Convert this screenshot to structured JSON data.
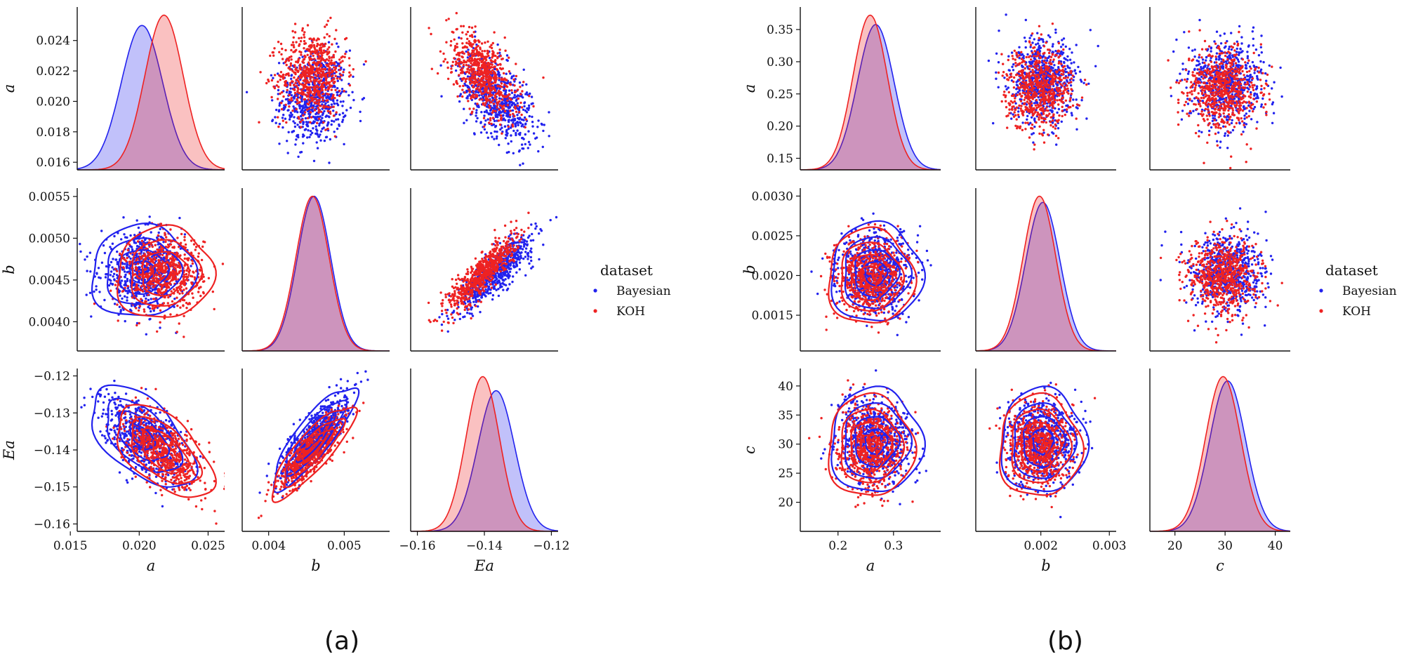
{
  "chart_data": [
    {
      "type": "scatter",
      "title": "",
      "panel_caption": "(a)",
      "variables": [
        "a",
        "b",
        "Ea"
      ],
      "xlabels": [
        "a",
        "b",
        "Ea"
      ],
      "ylabels": [
        "a",
        "b",
        "Ea"
      ],
      "ranges": {
        "a": [
          0.0155,
          0.0262
        ],
        "b": [
          0.00365,
          0.0056
        ],
        "Ea": [
          -0.162,
          -0.118
        ]
      },
      "ticks": {
        "a": [
          0.016,
          0.018,
          0.02,
          0.022,
          0.024
        ],
        "b": [
          0.004,
          0.0045,
          0.005,
          0.0055
        ],
        "Ea": [
          -0.16,
          -0.15,
          -0.14,
          -0.13,
          -0.12
        ]
      },
      "tick_labels": {
        "a": [
          "0.016",
          "0.018",
          "0.020",
          "0.022",
          "0.024"
        ],
        "b": [
          "0.0040",
          "0.0045",
          "0.0050",
          "0.0055"
        ],
        "Ea": [
          "−0.16",
          "−0.15",
          "−0.14",
          "−0.13",
          "−0.12"
        ]
      },
      "x_ticks": {
        "a": [
          0.015,
          0.02,
          0.025
        ],
        "b": [
          0.004,
          0.005
        ],
        "Ea": [
          -0.16,
          -0.14,
          -0.12
        ]
      },
      "x_tick_labels": {
        "a": [
          "0.015",
          "0.020",
          "0.025"
        ],
        "b": [
          "0.004",
          "0.005"
        ],
        "Ea": [
          "−0.16",
          "−0.14",
          "−0.12"
        ]
      },
      "series": [
        {
          "name": "Bayesian",
          "color": "#2222ee",
          "mean": {
            "a": 0.0202,
            "b": 0.0046,
            "Ea": -0.1365
          },
          "sd": {
            "a": 0.0015,
            "b": 0.00022,
            "Ea": 0.0055
          },
          "corr": {
            "a_b": 0.05,
            "a_Ea": -0.55,
            "b_Ea": 0.85
          }
        },
        {
          "name": "KOH",
          "color": "#ee2222",
          "mean": {
            "a": 0.0218,
            "b": 0.00458,
            "Ea": -0.1405
          },
          "sd": {
            "a": 0.0014,
            "b": 0.00022,
            "Ea": 0.005
          },
          "corr": {
            "a_b": 0.05,
            "a_Ea": -0.55,
            "b_Ea": 0.85
          }
        }
      ],
      "legend": {
        "title": "dataset",
        "entries": [
          "Bayesian",
          "KOH"
        ],
        "location": "right"
      }
    },
    {
      "type": "scatter",
      "title": "",
      "panel_caption": "(b)",
      "variables": [
        "a",
        "b",
        "c"
      ],
      "xlabels": [
        "a",
        "b",
        "c"
      ],
      "ylabels": [
        "a",
        "b",
        "c"
      ],
      "ranges": {
        "a": [
          0.132,
          0.385
        ],
        "b": [
          0.00105,
          0.0031
        ],
        "c": [
          15,
          43
        ]
      },
      "ticks": {
        "a": [
          0.15,
          0.2,
          0.25,
          0.3,
          0.35
        ],
        "b": [
          0.0015,
          0.002,
          0.0025,
          0.003
        ],
        "c": [
          20,
          25,
          30,
          35,
          40
        ]
      },
      "tick_labels": {
        "a": [
          "0.15",
          "0.20",
          "0.25",
          "0.30",
          "0.35"
        ],
        "b": [
          "0.0015",
          "0.0020",
          "0.0025",
          "0.0030"
        ],
        "c": [
          "20",
          "25",
          "30",
          "35",
          "40"
        ]
      },
      "x_ticks": {
        "a": [
          0.2,
          0.3
        ],
        "b": [
          0.002,
          0.003
        ],
        "c": [
          20,
          30,
          40
        ]
      },
      "x_tick_labels": {
        "a": [
          "0.2",
          "0.3"
        ],
        "b": [
          "0.002",
          "0.003"
        ],
        "c": [
          "20",
          "30",
          "40"
        ]
      },
      "series": [
        {
          "name": "Bayesian",
          "color": "#2222ee",
          "mean": {
            "a": 0.268,
            "b": 0.00203,
            "c": 30.5
          },
          "sd": {
            "a": 0.033,
            "b": 0.00025,
            "c": 3.6
          },
          "corr": {
            "a_b": 0.0,
            "a_c": 0.0,
            "b_c": 0.0
          }
        },
        {
          "name": "KOH",
          "color": "#ee2222",
          "mean": {
            "a": 0.258,
            "b": 0.00198,
            "c": 29.6
          },
          "sd": {
            "a": 0.031,
            "b": 0.00024,
            "c": 3.5
          },
          "corr": {
            "a_b": 0.0,
            "a_c": 0.0,
            "b_c": 0.0
          }
        }
      ],
      "legend": {
        "title": "dataset",
        "entries": [
          "Bayesian",
          "KOH"
        ],
        "location": "right"
      }
    }
  ]
}
